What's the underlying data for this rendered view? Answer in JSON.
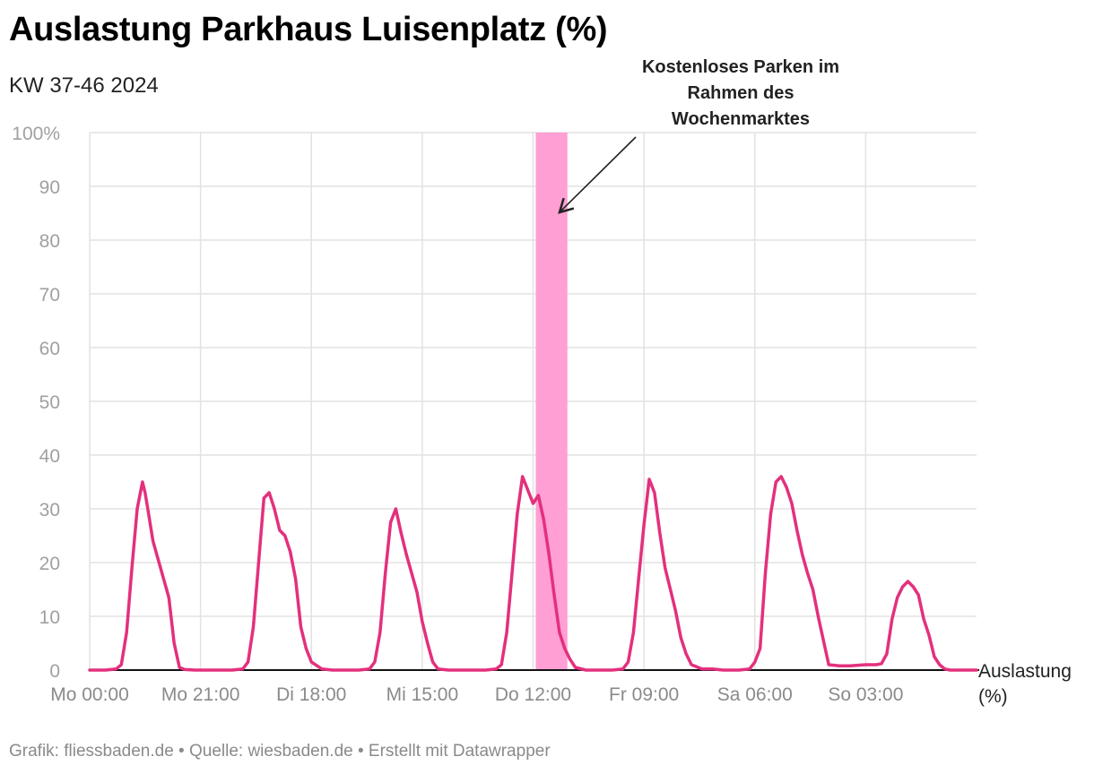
{
  "header": {
    "title": "Auslastung Parkhaus Luisenplatz (%)",
    "subtitle": "KW 37-46 2024"
  },
  "footer": {
    "text": "Grafik: fliessbaden.de • Quelle: wiesbaden.de • Erstellt mit Datawrapper"
  },
  "chart_data": {
    "type": "line",
    "ylim": [
      0,
      100
    ],
    "y_ticks": [
      "100%",
      "90",
      "80",
      "70",
      "60",
      "50",
      "40",
      "30",
      "20",
      "10",
      "0"
    ],
    "x_ticks": [
      "Mo 00:00",
      "Mo 21:00",
      "Di 18:00",
      "Mi 15:00",
      "Do 12:00",
      "Fr 09:00",
      "Sa 06:00",
      "So 03:00"
    ],
    "xlim_hours": [
      0,
      168
    ],
    "grid": true,
    "series_label": [
      "Auslastung",
      "(%)"
    ],
    "colors": {
      "line": "#e3307d",
      "highlight": "#ff9fd4",
      "grid": "#e2e2e2"
    },
    "highlight": {
      "from_hours": 84.5,
      "to_hours": 90.5
    },
    "annotation": {
      "lines": [
        "Kostenloses Parken im",
        "Rahmen des",
        "Wochenmarktes"
      ]
    },
    "series": [
      {
        "x": [
          0,
          3,
          5,
          6,
          7,
          8,
          9,
          10,
          10.5,
          11,
          12,
          13,
          14,
          15,
          16,
          17,
          18,
          20,
          22,
          24,
          27,
          29,
          30,
          31,
          32,
          33,
          34,
          35,
          36,
          37,
          38,
          39,
          40,
          41,
          42,
          44,
          46,
          48,
          51,
          53,
          54,
          55,
          56,
          57,
          58,
          59,
          60,
          61,
          62,
          63,
          64,
          65,
          66,
          68,
          70,
          72,
          75,
          77,
          78,
          79,
          80,
          81,
          82,
          83,
          84,
          85,
          86,
          87,
          88,
          89,
          90,
          91,
          92,
          94,
          96,
          99,
          101,
          102,
          103,
          104,
          105,
          106,
          107,
          108,
          109,
          110,
          111,
          112,
          113,
          114,
          116,
          118,
          120,
          123,
          125,
          126,
          127,
          128,
          129,
          130,
          131,
          132,
          133,
          134,
          135,
          136,
          137,
          138,
          140,
          142,
          144,
          147,
          149,
          150,
          151,
          152,
          153,
          154,
          155,
          156,
          157,
          158,
          159,
          160,
          161,
          162,
          163,
          164,
          166,
          168
        ],
        "y": [
          0,
          0,
          0.2,
          1,
          7,
          19,
          30,
          35,
          33,
          30,
          24,
          20.5,
          17,
          13.5,
          5,
          0.5,
          0.1,
          0,
          0,
          0,
          0,
          0.2,
          1.5,
          8,
          20,
          32,
          33,
          30,
          26,
          25,
          22,
          17,
          8,
          4,
          1.5,
          0.2,
          0,
          0,
          0,
          0.2,
          1.5,
          7,
          18,
          27.5,
          30,
          25.5,
          21.5,
          18,
          14.5,
          9,
          5,
          1.5,
          0.2,
          0,
          0,
          0,
          0,
          0.2,
          1,
          7,
          18,
          29,
          36,
          33.5,
          31,
          32.5,
          28,
          21.5,
          14,
          7,
          4,
          2,
          0.5,
          0,
          0,
          0,
          0.2,
          1.5,
          7,
          17,
          27,
          35.5,
          33,
          25.5,
          19,
          15,
          11,
          6,
          3,
          1,
          0.2,
          0.2,
          0,
          0,
          0.2,
          1.5,
          4,
          18,
          29,
          35,
          36,
          34,
          31,
          26,
          21.5,
          18,
          15,
          10,
          1,
          0.8,
          0.8,
          1,
          1,
          1.2,
          3,
          9.5,
          13.5,
          15.5,
          16.5,
          15.5,
          14,
          9.5,
          6.5,
          2.5,
          1,
          0.2,
          0,
          0,
          0,
          0
        ]
      }
    ]
  }
}
